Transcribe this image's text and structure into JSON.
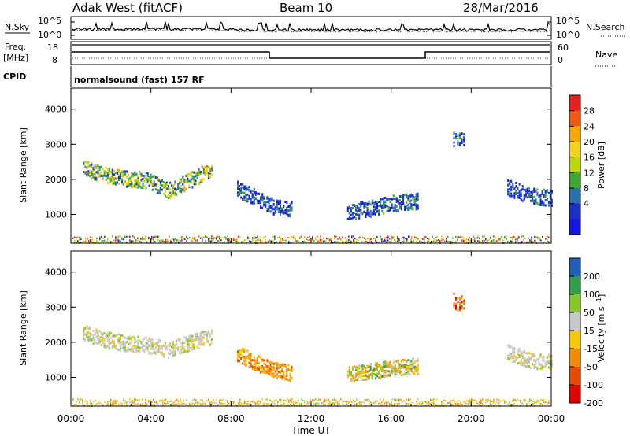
{
  "header": {
    "title": "Adak West (fitACF)",
    "beam": "Beam 10",
    "date": "28/Mar/2016"
  },
  "status_panels": {
    "noise_label": "N.Sky",
    "noise_ticks": [
      "10^5",
      "10^0"
    ],
    "noise_right_label": "N.Search",
    "freq_label_1": "Freq.",
    "freq_label_2": "[MHz]",
    "freq_ticks": [
      "18",
      "8"
    ],
    "nave_label": "Nave",
    "nave_ticks": [
      "60",
      "0"
    ],
    "cpid_label": "CPID",
    "cpid_text": "normalsound (fast) 157 RF"
  },
  "chart_data": [
    {
      "type": "heatmap",
      "title": "",
      "xlabel": "",
      "ylabel": "Slant Range [km]",
      "xlim": [
        0,
        24
      ],
      "ylim": [
        180,
        4600
      ],
      "yticks": [
        1000,
        2000,
        3000,
        4000
      ],
      "colorbar": {
        "label": "Power [dB]",
        "ticks": [
          "28",
          "24",
          "20",
          "16",
          "12",
          "8",
          "4"
        ],
        "colors": [
          "#e8201e",
          "#f25a10",
          "#f7a800",
          "#f2d21e",
          "#bad80a",
          "#3da830",
          "#2a6fb0",
          "#1c2fc8",
          "#1515e8"
        ]
      },
      "echo_regions": [
        {
          "t0": 0.6,
          "t1": 7.0,
          "r": [
            2350,
            2150,
            2050,
            2000,
            1700,
            2000,
            2300
          ],
          "color": "green-orange"
        },
        {
          "t0": 8.3,
          "t1": 11.0,
          "r": [
            1750,
            1500,
            1250,
            1150
          ],
          "color": "blue"
        },
        {
          "t0": 13.8,
          "t1": 17.3,
          "r": [
            1100,
            1200,
            1350,
            1400
          ],
          "color": "blue"
        },
        {
          "t0": 19.1,
          "t1": 19.6,
          "r": [
            3200,
            3100
          ],
          "color": "blue"
        },
        {
          "t0": 21.8,
          "t1": 24.0,
          "r": [
            1800,
            1550,
            1500
          ],
          "color": "blue"
        }
      ]
    },
    {
      "type": "heatmap",
      "title": "",
      "xlabel": "Time UT",
      "ylabel": "Slant Range [km]",
      "xlim": [
        0,
        24
      ],
      "ylim": [
        180,
        4600
      ],
      "yticks": [
        1000,
        2000,
        3000,
        4000
      ],
      "xticks": [
        "00:00",
        "04:00",
        "08:00",
        "12:00",
        "16:00",
        "20:00",
        "00:00"
      ],
      "colorbar": {
        "label": "Velocity [m s^-1]",
        "ticks": [
          "200",
          "100",
          "50",
          "15",
          "-15",
          "-50",
          "-100",
          "-200"
        ],
        "colors": [
          "#1f5fb8",
          "#2fa048",
          "#86c826",
          "#c8c8c8",
          "#f7c800",
          "#f28c00",
          "#e84a00",
          "#e80000"
        ]
      },
      "echo_regions": [
        {
          "t0": 0.6,
          "t1": 7.0,
          "r": [
            2300,
            2100,
            2000,
            1950,
            1800,
            2000,
            2200
          ],
          "color": "gray"
        },
        {
          "t0": 8.3,
          "t1": 11.0,
          "r": [
            1700,
            1450,
            1250,
            1150
          ],
          "color": "orange"
        },
        {
          "t0": 13.8,
          "t1": 17.3,
          "r": [
            1100,
            1200,
            1300,
            1350
          ],
          "color": "orange-green"
        },
        {
          "t0": 19.1,
          "t1": 19.6,
          "r": [
            3200,
            3100
          ],
          "color": "red"
        },
        {
          "t0": 21.8,
          "t1": 24.0,
          "r": [
            1750,
            1500,
            1450
          ],
          "color": "gray"
        }
      ]
    }
  ]
}
